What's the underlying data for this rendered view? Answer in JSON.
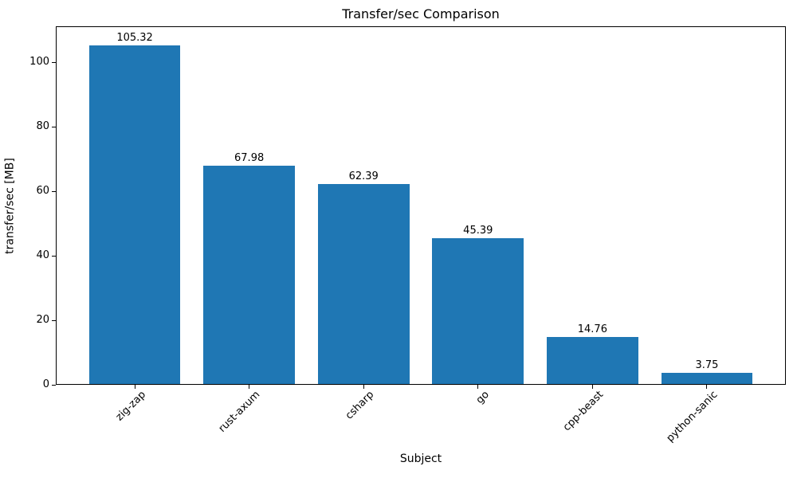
{
  "figure": {
    "background": "#ffffff"
  },
  "chart_data": {
    "type": "bar",
    "title": "Transfer/sec Comparison",
    "xlabel": "Subject",
    "ylabel": "transfer/sec [MB]",
    "categories": [
      "zig-zap",
      "rust-axum",
      "csharp",
      "go",
      "cpp-beast",
      "python-sanic"
    ],
    "values": [
      105.32,
      67.98,
      62.39,
      45.39,
      14.76,
      3.75
    ],
    "bar_value_labels": [
      "105.32",
      "67.98",
      "62.39",
      "45.39",
      "14.76",
      "3.75"
    ],
    "yticks": [
      0,
      20,
      40,
      60,
      80,
      100
    ],
    "ytick_labels": [
      "0",
      "20",
      "40",
      "60",
      "80",
      "100"
    ],
    "ylim": [
      0,
      111.2
    ],
    "xtick_rotation_deg": 45,
    "grid": false,
    "bar_color": "#1f77b4",
    "axis_color": "#000000",
    "text_color": "#000000"
  }
}
